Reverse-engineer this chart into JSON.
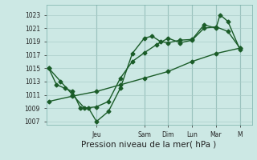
{
  "xlabel": "Pression niveau de la mer( hPa )",
  "bg_color": "#cce8e4",
  "grid_color": "#aaccc8",
  "line_color": "#1a5c28",
  "ylim": [
    1006.5,
    1024.5
  ],
  "yticks": [
    1007,
    1009,
    1011,
    1013,
    1015,
    1017,
    1019,
    1021,
    1023
  ],
  "xlim": [
    -0.1,
    8.5
  ],
  "day_labels": [
    "Jeu",
    "Sam",
    "Dim",
    "Lun",
    "Mar",
    "M"
  ],
  "day_positions": [
    2,
    4,
    5,
    6,
    7,
    8
  ],
  "line1_x": [
    0,
    0.33,
    0.67,
    1.0,
    1.33,
    1.67,
    2.0,
    2.5,
    3.0,
    3.5,
    4.0,
    4.33,
    4.67,
    5.0,
    5.5,
    6.0,
    6.5,
    7.0,
    7.17,
    7.5,
    8.0
  ],
  "line1_y": [
    1015,
    1012.5,
    1012,
    1011.5,
    1009,
    1009,
    1007,
    1008.5,
    1012,
    1017.2,
    1019.5,
    1019.8,
    1019.0,
    1018.8,
    1019.2,
    1019.3,
    1021.5,
    1021.0,
    1023.0,
    1022.0,
    1017.8
  ],
  "line2_x": [
    0,
    0.5,
    1.0,
    1.5,
    2.0,
    2.5,
    3.0,
    3.5,
    4.0,
    4.5,
    5.0,
    5.5,
    6.0,
    6.5,
    7.0,
    7.5,
    8.0
  ],
  "line2_y": [
    1015,
    1013,
    1011,
    1009,
    1009.2,
    1010.0,
    1013.5,
    1016.0,
    1017.3,
    1018.5,
    1019.5,
    1018.8,
    1019.2,
    1021.0,
    1021.2,
    1020.5,
    1018.0
  ],
  "line3_x": [
    0,
    1,
    2,
    3,
    4,
    5,
    6,
    7,
    8
  ],
  "line3_y": [
    1010.0,
    1010.8,
    1011.5,
    1012.5,
    1013.5,
    1014.5,
    1016.0,
    1017.2,
    1018.0
  ],
  "markersize": 2.5,
  "linewidth": 1.0,
  "tick_fontsize": 5.5,
  "xlabel_fontsize": 7.5
}
